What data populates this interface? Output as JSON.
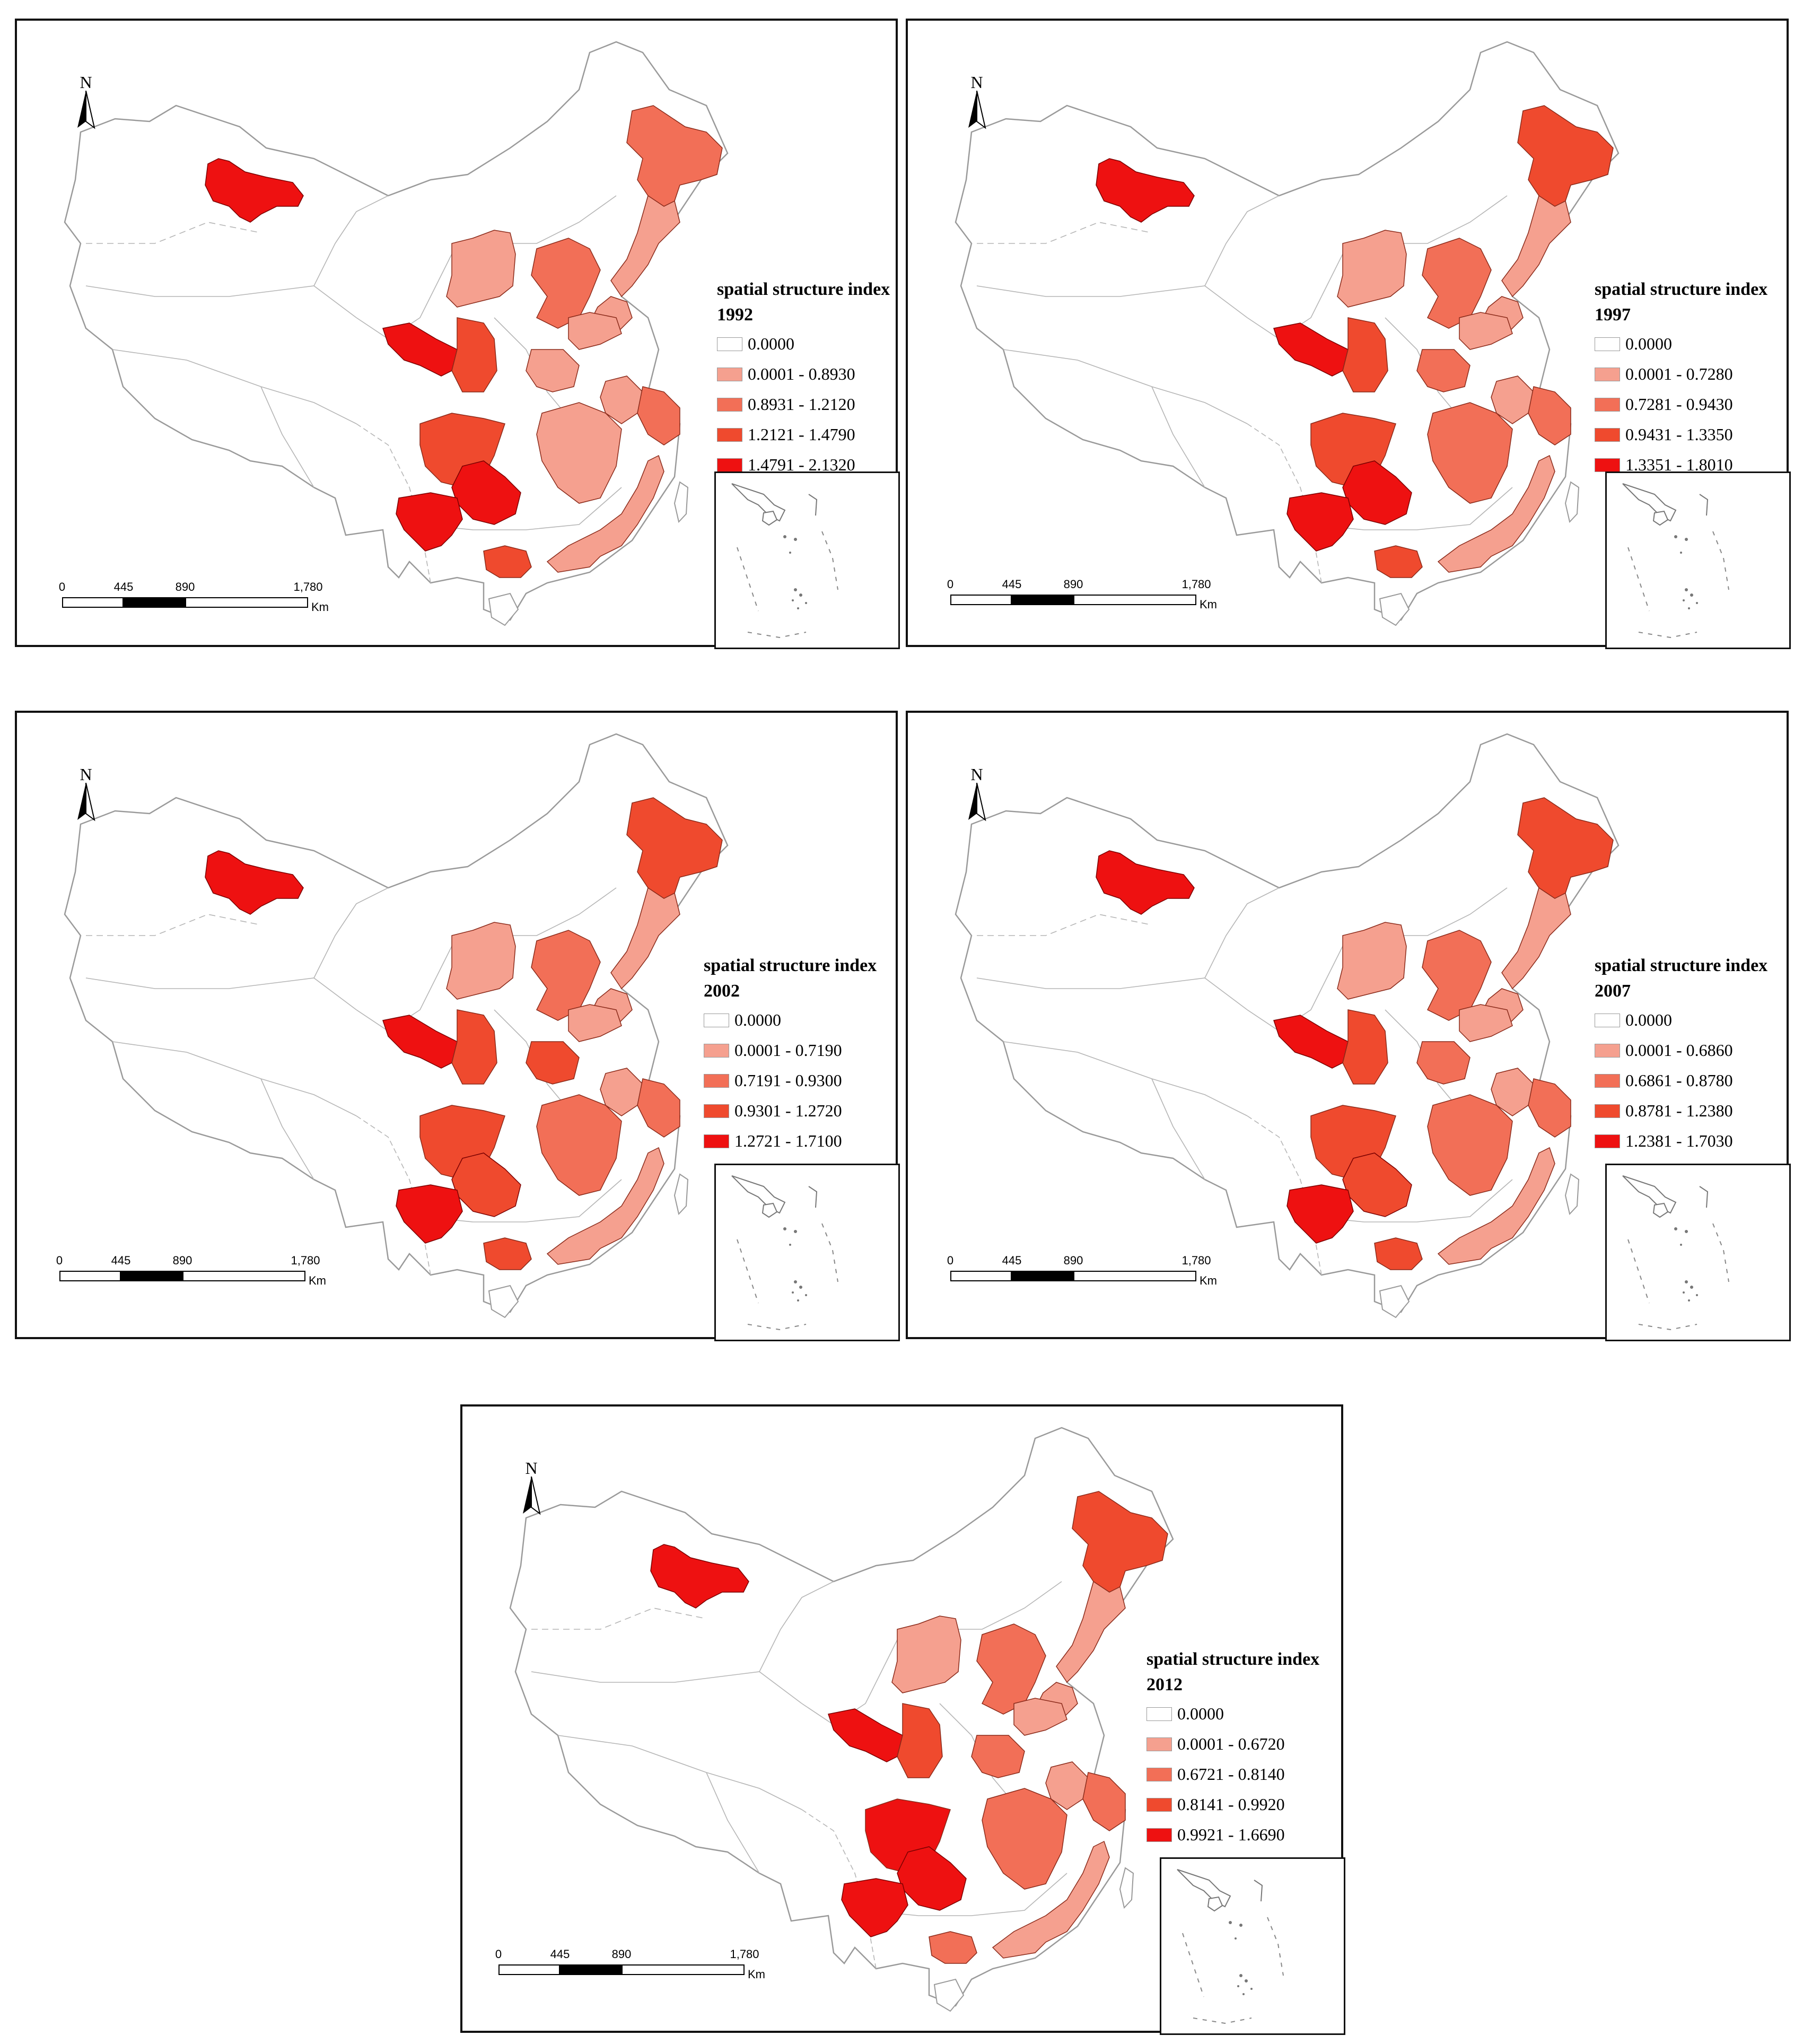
{
  "legend_title": "spatial structure index",
  "north_label": "N",
  "scale": {
    "ticks": [
      "0",
      "445",
      "890",
      "1,780"
    ],
    "unit": "Km"
  },
  "colors": {
    "c0": "#ffffff",
    "c1": "#f5a08f",
    "c2": "#f26f57",
    "c3": "#ef4a2e",
    "c4": "#ee1111",
    "outline": "#9a9a9a"
  },
  "panels": [
    {
      "year": "1992",
      "classes": [
        "0.0000",
        "0.0001 - 0.8930",
        "0.8931 - 1.2120",
        "1.2121 - 1.4790",
        "1.4791 - 2.1320"
      ]
    },
    {
      "year": "1997",
      "classes": [
        "0.0000",
        "0.0001 - 0.7280",
        "0.7281 - 0.9430",
        "0.9431 - 1.3350",
        "1.3351 - 1.8010"
      ]
    },
    {
      "year": "2002",
      "classes": [
        "0.0000",
        "0.0001 - 0.7190",
        "0.7191 - 0.9300",
        "0.9301 - 1.2720",
        "1.2721 - 1.7100"
      ]
    },
    {
      "year": "2007",
      "classes": [
        "0.0000",
        "0.0001 - 0.6860",
        "0.6861 - 0.8780",
        "0.8781 - 1.2380",
        "1.2381 - 1.7030"
      ]
    },
    {
      "year": "2012",
      "classes": [
        "0.0000",
        "0.0001 - 0.6720",
        "0.6721 - 0.8140",
        "0.8141 - 0.9920",
        "0.9921 - 1.6690"
      ]
    }
  ],
  "region_classes": {
    "1992": {
      "xinjiang_north": 4,
      "heilongjiang": 2,
      "jilin": 1,
      "liaoning": 1,
      "inner_mongolia": 1,
      "shanxi_hebei": 2,
      "gansu": 4,
      "shaanxi": 3,
      "shandong": 1,
      "henan": 1,
      "jiangsu_anhui": 1,
      "zhejiang": 2,
      "hubei_hunan": 1,
      "fujian": 1,
      "sichuan": 3,
      "chongqing_guizhou": 4,
      "yunnan": 4,
      "guangxi": 3
    },
    "1997": {
      "xinjiang_north": 4,
      "heilongjiang": 3,
      "jilin": 1,
      "liaoning": 1,
      "inner_mongolia": 1,
      "shanxi_hebei": 2,
      "gansu": 4,
      "shaanxi": 3,
      "shandong": 1,
      "henan": 2,
      "jiangsu_anhui": 1,
      "zhejiang": 2,
      "hubei_hunan": 2,
      "fujian": 1,
      "sichuan": 3,
      "chongqing_guizhou": 4,
      "yunnan": 4,
      "guangxi": 3
    },
    "2002": {
      "xinjiang_north": 4,
      "heilongjiang": 3,
      "jilin": 1,
      "liaoning": 1,
      "inner_mongolia": 1,
      "shanxi_hebei": 2,
      "gansu": 4,
      "shaanxi": 3,
      "shandong": 1,
      "henan": 3,
      "jiangsu_anhui": 1,
      "zhejiang": 2,
      "hubei_hunan": 2,
      "fujian": 1,
      "sichuan": 3,
      "chongqing_guizhou": 3,
      "yunnan": 4,
      "guangxi": 3
    },
    "2007": {
      "xinjiang_north": 4,
      "heilongjiang": 3,
      "jilin": 1,
      "liaoning": 1,
      "inner_mongolia": 1,
      "shanxi_hebei": 2,
      "gansu": 4,
      "shaanxi": 3,
      "shandong": 1,
      "henan": 2,
      "jiangsu_anhui": 1,
      "zhejiang": 2,
      "hubei_hunan": 2,
      "fujian": 1,
      "sichuan": 3,
      "chongqing_guizhou": 3,
      "yunnan": 4,
      "guangxi": 3
    },
    "2012": {
      "xinjiang_north": 4,
      "heilongjiang": 3,
      "jilin": 1,
      "liaoning": 1,
      "inner_mongolia": 1,
      "shanxi_hebei": 2,
      "gansu": 4,
      "shaanxi": 3,
      "shandong": 1,
      "henan": 2,
      "jiangsu_anhui": 1,
      "zhejiang": 2,
      "hubei_hunan": 2,
      "fujian": 1,
      "sichuan": 4,
      "chongqing_guizhou": 4,
      "yunnan": 4,
      "guangxi": 2
    }
  }
}
